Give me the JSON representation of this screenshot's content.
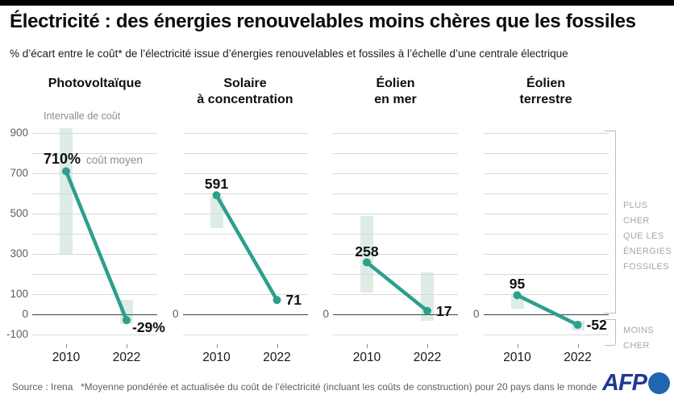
{
  "colors": {
    "accent": "#2ba08c",
    "band": "#ddece5",
    "grid": "#d9d9d9",
    "zero_line": "#3f3f3f",
    "muted_text": "#8d8d8d",
    "afp_blue": "#1e3a93",
    "afp_circle_blue": "#1f65b0"
  },
  "header": {
    "title": "Électricité : des énergies renouvelables moins chères que les fossiles",
    "subtitle": "% d’écart entre le coût* de l’électricité issue d’énergies renouvelables et fossiles à l’échelle d’une centrale électrique"
  },
  "chart_data": {
    "type": "line",
    "title": "Électricité : des énergies renouvelables moins chères que les fossiles",
    "subtitle": "% d’écart entre le coût* de l’électricité issue d’énergies renouvelables et fossiles à l’échelle d’une centrale électrique",
    "unit": "%",
    "categories": [
      "2010",
      "2022"
    ],
    "ylim": [
      -100,
      925
    ],
    "grid_step": 100,
    "interval_label": "Intervalle de coût",
    "panels": [
      {
        "title_lines": [
          "Photovoltaïque"
        ],
        "y_axis_labels": [
          900,
          700,
          500,
          300,
          100,
          0,
          -100
        ],
        "points": [
          {
            "value": 710,
            "label": "710%",
            "suffix": "coût moyen",
            "placement": "left-row",
            "band": [
              300,
              925
            ]
          },
          {
            "value": -29,
            "label": "-29%",
            "placement": "below-right",
            "band": [
              -48,
              72
            ]
          }
        ]
      },
      {
        "title_lines": [
          "Solaire",
          "à concentration"
        ],
        "y_axis_labels": [
          0
        ],
        "points": [
          {
            "value": 591,
            "label": "591",
            "placement": "above",
            "band": [
              430,
              585
            ]
          },
          {
            "value": 71,
            "label": "71",
            "placement": "right",
            "band": null
          }
        ]
      },
      {
        "title_lines": [
          "Éolien",
          "en mer"
        ],
        "y_axis_labels": [
          0
        ],
        "points": [
          {
            "value": 258,
            "label": "258",
            "placement": "above",
            "band": [
              110,
              490
            ]
          },
          {
            "value": 17,
            "label": "17",
            "placement": "right",
            "band": [
              -30,
              210
            ]
          }
        ]
      },
      {
        "title_lines": [
          "Éolien",
          "terrestre"
        ],
        "y_axis_labels": [
          0
        ],
        "points": [
          {
            "value": 95,
            "label": "95",
            "placement": "above",
            "band": [
              28,
              100
            ]
          },
          {
            "value": -52,
            "label": "-52",
            "placement": "right",
            "band": [
              -80,
              -32
            ]
          }
        ]
      }
    ],
    "right_annotations": {
      "more_expensive_lines": [
        "PLUS CHER",
        "QUE LES",
        "ÉNERGIES",
        "FOSSILES"
      ],
      "cheaper": "MOINS CHER"
    }
  },
  "footer": {
    "source": "Source : Irena",
    "footnote": "*Moyenne pondérée et actualisée du coût de l’électricité (incluant les coûts de construction) pour 20 pays dans le monde",
    "brand": "AFP"
  }
}
